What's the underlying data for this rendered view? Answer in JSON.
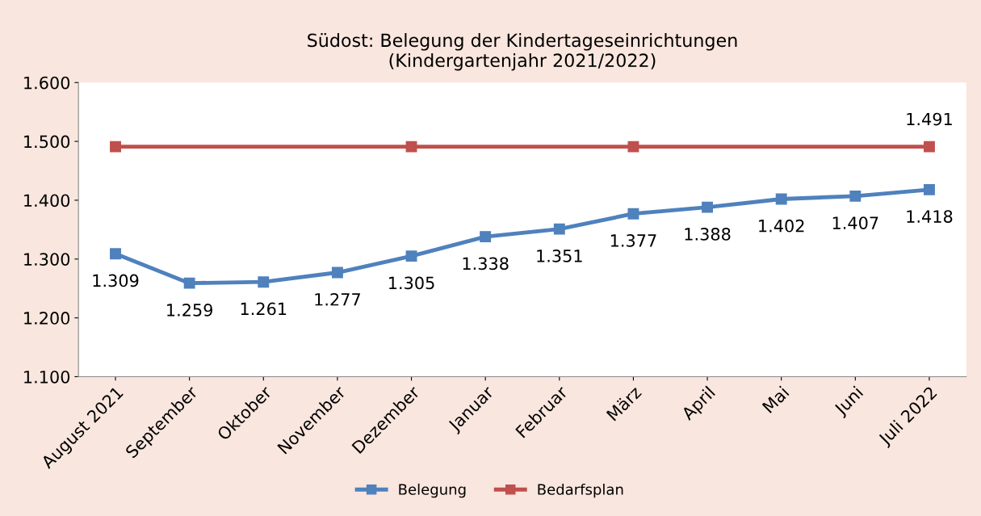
{
  "chart_data": {
    "type": "line",
    "title": "Südost: Belegung der Kindertageseinrichtungen\n(Kindergartenjahr 2021/2022)",
    "categories": [
      "August 2021",
      "September",
      "Oktober",
      "November",
      "Dezember",
      "Januar",
      "Februar",
      "März",
      "April",
      "Mai",
      "Juni",
      "Juli 2022"
    ],
    "series": [
      {
        "name": "Belegung",
        "color": "#4f81bd",
        "values": [
          1309,
          1259,
          1261,
          1277,
          1305,
          1338,
          1351,
          1377,
          1388,
          1402,
          1407,
          1418
        ],
        "value_labels": [
          "1.309",
          "1.259",
          "1.261",
          "1.277",
          "1.305",
          "1.338",
          "1.351",
          "1.377",
          "1.388",
          "1.402",
          "1.407",
          "1.418"
        ]
      },
      {
        "name": "Bedarfsplan",
        "color": "#c0504d",
        "values": [
          1491,
          null,
          null,
          null,
          1491,
          null,
          null,
          1491,
          null,
          null,
          null,
          1491
        ],
        "value_labels": [
          null,
          null,
          null,
          null,
          null,
          null,
          null,
          null,
          null,
          null,
          null,
          "1.491"
        ]
      }
    ],
    "ylim": [
      1100,
      1600
    ],
    "yticks": [
      {
        "value": 1100,
        "label": "1.100"
      },
      {
        "value": 1200,
        "label": "1.200"
      },
      {
        "value": 1300,
        "label": "1.300"
      },
      {
        "value": 1400,
        "label": "1.400"
      },
      {
        "value": 1500,
        "label": "1.500"
      },
      {
        "value": 1600,
        "label": "1.600"
      }
    ],
    "grid": false,
    "legend": "bottom",
    "marker": "square",
    "line_style": "solid"
  }
}
